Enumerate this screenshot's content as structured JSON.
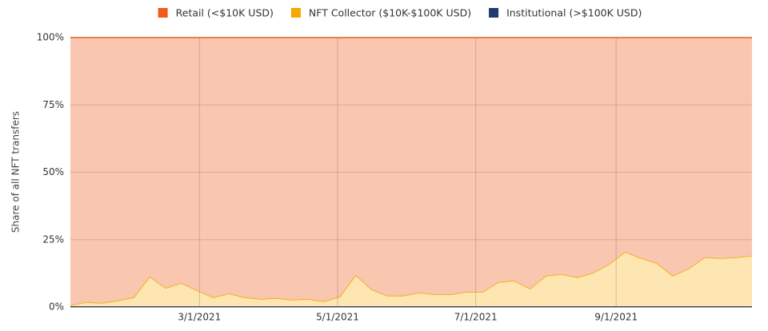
{
  "chart_data": {
    "type": "stacked_area",
    "y_label": "Share of all NFT transfers",
    "legend": "top",
    "x": [
      "1/3/2021",
      "1/10/2021",
      "1/17/2021",
      "1/24/2021",
      "1/31/2021",
      "2/7/2021",
      "2/14/2021",
      "2/21/2021",
      "2/28/2021",
      "3/7/2021",
      "3/14/2021",
      "3/21/2021",
      "3/28/2021",
      "4/4/2021",
      "4/11/2021",
      "4/18/2021",
      "4/25/2021",
      "5/2/2021",
      "5/9/2021",
      "5/16/2021",
      "5/23/2021",
      "5/30/2021",
      "6/6/2021",
      "6/13/2021",
      "6/20/2021",
      "6/27/2021",
      "7/4/2021",
      "7/11/2021",
      "7/18/2021",
      "7/25/2021",
      "8/1/2021",
      "8/8/2021",
      "8/15/2021",
      "8/22/2021",
      "8/29/2021",
      "9/5/2021",
      "9/12/2021",
      "9/19/2021",
      "9/26/2021",
      "10/3/2021",
      "10/10/2021",
      "10/17/2021",
      "10/24/2021",
      "10/31/2021"
    ],
    "xlim": [
      "1/3/2021",
      "10/31/2021"
    ],
    "xticks": [
      "3/1/2021",
      "5/1/2021",
      "7/1/2021",
      "9/1/2021"
    ],
    "ylim": [
      0,
      100
    ],
    "yticks": [
      {
        "value": 0,
        "label": "0%"
      },
      {
        "value": 25,
        "label": "25%"
      },
      {
        "value": 50,
        "label": "50%"
      },
      {
        "value": 75,
        "label": "75%"
      },
      {
        "value": 100,
        "label": "100%"
      }
    ],
    "grid": true,
    "series": [
      {
        "name": "Retail (<$10K USD)",
        "color": "#f05a1a",
        "fill": "#f9c6b0",
        "values": [
          99.4,
          98.2,
          98.5,
          97.6,
          96.4,
          88.7,
          92.9,
          91.1,
          93.8,
          96.4,
          95.0,
          96.4,
          97.0,
          96.7,
          97.3,
          97.0,
          97.9,
          96.1,
          88.1,
          93.5,
          95.8,
          95.8,
          94.7,
          95.3,
          95.3,
          94.4,
          94.4,
          90.8,
          90.2,
          93.2,
          88.4,
          87.8,
          89.0,
          87.2,
          84.0,
          79.5,
          81.9,
          83.7,
          88.4,
          85.8,
          81.6,
          81.9,
          81.6,
          81.0
        ]
      },
      {
        "name": "NFT Collector ($10K-$100K USD)",
        "color": "#f5a800",
        "fill": "#fde6b2",
        "values": [
          0.3,
          1.5,
          1.2,
          2.1,
          3.3,
          11.0,
          6.8,
          8.6,
          5.9,
          3.3,
          4.7,
          3.3,
          2.7,
          3.0,
          2.4,
          2.7,
          1.8,
          3.6,
          11.6,
          6.2,
          3.9,
          3.9,
          5.0,
          4.4,
          4.4,
          5.3,
          5.3,
          8.9,
          9.5,
          6.5,
          11.3,
          11.9,
          10.7,
          12.5,
          15.7,
          20.2,
          17.8,
          16.0,
          11.3,
          13.9,
          18.1,
          17.8,
          18.1,
          18.7
        ]
      },
      {
        "name": "Institutional (>$100K USD)",
        "color": "#1f3a6e",
        "fill": "#1f3a6e",
        "values": [
          0.3,
          0.3,
          0.3,
          0.3,
          0.3,
          0.3,
          0.3,
          0.3,
          0.3,
          0.3,
          0.3,
          0.3,
          0.3,
          0.3,
          0.3,
          0.3,
          0.3,
          0.3,
          0.3,
          0.3,
          0.3,
          0.3,
          0.3,
          0.3,
          0.3,
          0.3,
          0.3,
          0.3,
          0.3,
          0.3,
          0.3,
          0.3,
          0.3,
          0.3,
          0.3,
          0.3,
          0.3,
          0.3,
          0.3,
          0.3,
          0.3,
          0.3,
          0.3,
          0.3
        ]
      }
    ]
  }
}
